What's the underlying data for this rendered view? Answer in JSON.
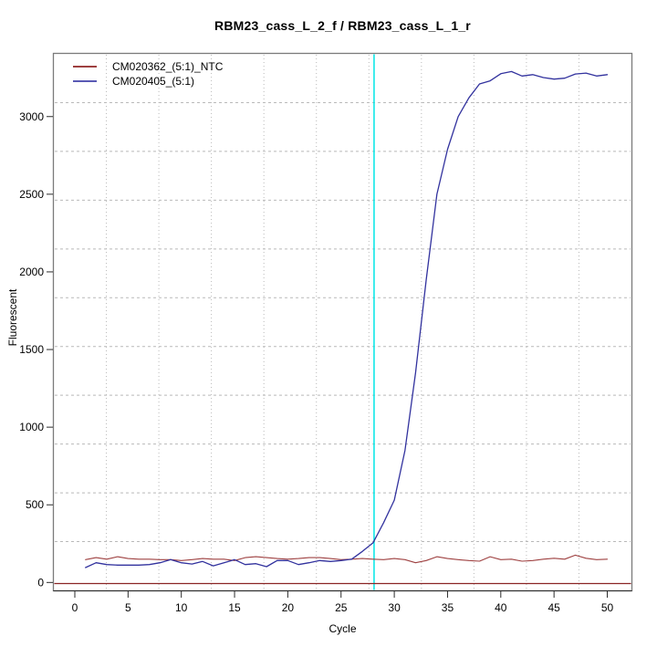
{
  "figure": {
    "title": "RBM23_cass_L_2_f / RBM23_cass_L_1_r",
    "xlabel": "Cycle",
    "ylabel": "Fluorescent",
    "background": "#ffffff",
    "box_color": "#7a7a7a"
  },
  "legend": {
    "entries": [
      {
        "label": "CM020362_(5:1)_NTC",
        "color": "#9e4040"
      },
      {
        "label": "CM020405_(5:1)",
        "color": "#5a5ab4"
      }
    ]
  },
  "chart_data": {
    "type": "line",
    "title": "RBM23_cass_L_2_f / RBM23_cass_L_1_r",
    "xlabel": "Cycle",
    "ylabel": "Fluorescent",
    "x_ticks": [
      0,
      5,
      10,
      15,
      20,
      25,
      30,
      35,
      40,
      45,
      50
    ],
    "y_ticks": [
      0,
      500,
      1000,
      1500,
      2000,
      2500,
      3000
    ],
    "xlim": [
      -1.97,
      52.27
    ],
    "ylim": [
      -51,
      3404
    ],
    "grid": {
      "divisions": 11,
      "color": "#b9b9b9",
      "style": "dotted"
    },
    "ct_line": {
      "x": 28.1,
      "color": "#00e6e6"
    },
    "threshold_line": {
      "y": -7,
      "color": "#8b2525"
    },
    "x": [
      1,
      2,
      3,
      4,
      5,
      6,
      7,
      8,
      9,
      10,
      11,
      12,
      13,
      14,
      15,
      16,
      17,
      18,
      19,
      20,
      21,
      22,
      23,
      24,
      25,
      26,
      27,
      28,
      29,
      30,
      31,
      32,
      33,
      34,
      35,
      36,
      37,
      38,
      39,
      40,
      41,
      42,
      43,
      44,
      45,
      46,
      47,
      48,
      49,
      50
    ],
    "series": [
      {
        "name": "CM020362_(5:1)_NTC",
        "color": "#9e4040",
        "width": 1.1,
        "values": [
          147,
          160,
          150,
          166,
          154,
          150,
          150,
          147,
          147,
          141,
          147,
          154,
          150,
          150,
          141,
          160,
          166,
          160,
          154,
          150,
          154,
          160,
          160,
          154,
          147,
          150,
          154,
          150,
          147,
          154,
          147,
          127,
          141,
          166,
          154,
          147,
          141,
          137,
          166,
          147,
          150,
          137,
          141,
          150,
          156,
          150,
          176,
          156,
          147,
          150
        ]
      },
      {
        "name": "CM020405_(5:1)",
        "color": "#32329e",
        "width": 1.3,
        "values": [
          96,
          127,
          115,
          112,
          112,
          112,
          115,
          127,
          147,
          127,
          119,
          135,
          107,
          127,
          147,
          115,
          121,
          102,
          141,
          141,
          115,
          127,
          141,
          135,
          141,
          150,
          200,
          255,
          385,
          530,
          850,
          1350,
          1950,
          2500,
          2790,
          3000,
          3120,
          3210,
          3230,
          3276,
          3290,
          3261,
          3270,
          3251,
          3241,
          3247,
          3274,
          3280,
          3261,
          3270
        ]
      }
    ]
  }
}
